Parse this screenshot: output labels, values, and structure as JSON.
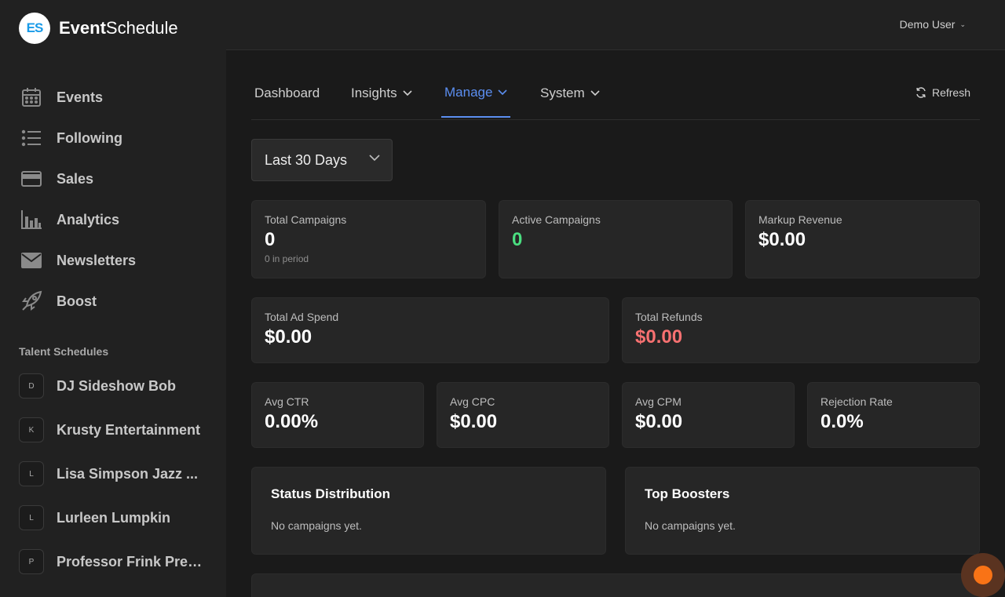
{
  "brand": {
    "logo_text": "ES",
    "name_bold": "Event",
    "name_regular": "Schedule"
  },
  "sidebar": {
    "items": [
      {
        "label": "Events",
        "icon": "calendar-icon"
      },
      {
        "label": "Following",
        "icon": "list-icon"
      },
      {
        "label": "Sales",
        "icon": "credit-card-icon"
      },
      {
        "label": "Analytics",
        "icon": "bar-chart-icon"
      },
      {
        "label": "Newsletters",
        "icon": "envelope-icon"
      },
      {
        "label": "Boost",
        "icon": "rocket-icon"
      }
    ],
    "section_title": "Talent Schedules",
    "talents": [
      {
        "initial": "D",
        "label": "DJ Sideshow Bob"
      },
      {
        "initial": "K",
        "label": "Krusty Entertainment"
      },
      {
        "initial": "L",
        "label": "Lisa Simpson Jazz ..."
      },
      {
        "initial": "L",
        "label": "Lurleen Lumpkin"
      },
      {
        "initial": "P",
        "label": "Professor Frink Pres..."
      }
    ]
  },
  "header": {
    "user_label": "Demo User"
  },
  "tabs": {
    "items": [
      {
        "label": "Dashboard"
      },
      {
        "label": "Insights"
      },
      {
        "label": "Manage"
      },
      {
        "label": "System"
      }
    ],
    "active": "Manage",
    "refresh_label": "Refresh"
  },
  "period": {
    "selected": "Last 30 Days"
  },
  "stats": {
    "total_campaigns": {
      "title": "Total Campaigns",
      "value": "0",
      "sub": "0 in period"
    },
    "active_campaigns": {
      "title": "Active Campaigns",
      "value": "0"
    },
    "markup_revenue": {
      "title": "Markup Revenue",
      "value": "$0.00"
    },
    "total_ad_spend": {
      "title": "Total Ad Spend",
      "value": "$0.00"
    },
    "total_refunds": {
      "title": "Total Refunds",
      "value": "$0.00"
    },
    "avg_ctr": {
      "title": "Avg CTR",
      "value": "0.00%"
    },
    "avg_cpc": {
      "title": "Avg CPC",
      "value": "$0.00"
    },
    "avg_cpm": {
      "title": "Avg CPM",
      "value": "$0.00"
    },
    "rejection_rate": {
      "title": "Rejection Rate",
      "value": "0.0%"
    }
  },
  "panels": {
    "status_distribution": {
      "title": "Status Distribution",
      "empty": "No campaigns yet."
    },
    "top_boosters": {
      "title": "Top Boosters",
      "empty": "No campaigns yet."
    }
  },
  "colors": {
    "accent": "#5b8ef0",
    "positive": "#4ade80",
    "negative": "#f87171",
    "fab": "#f97316"
  }
}
